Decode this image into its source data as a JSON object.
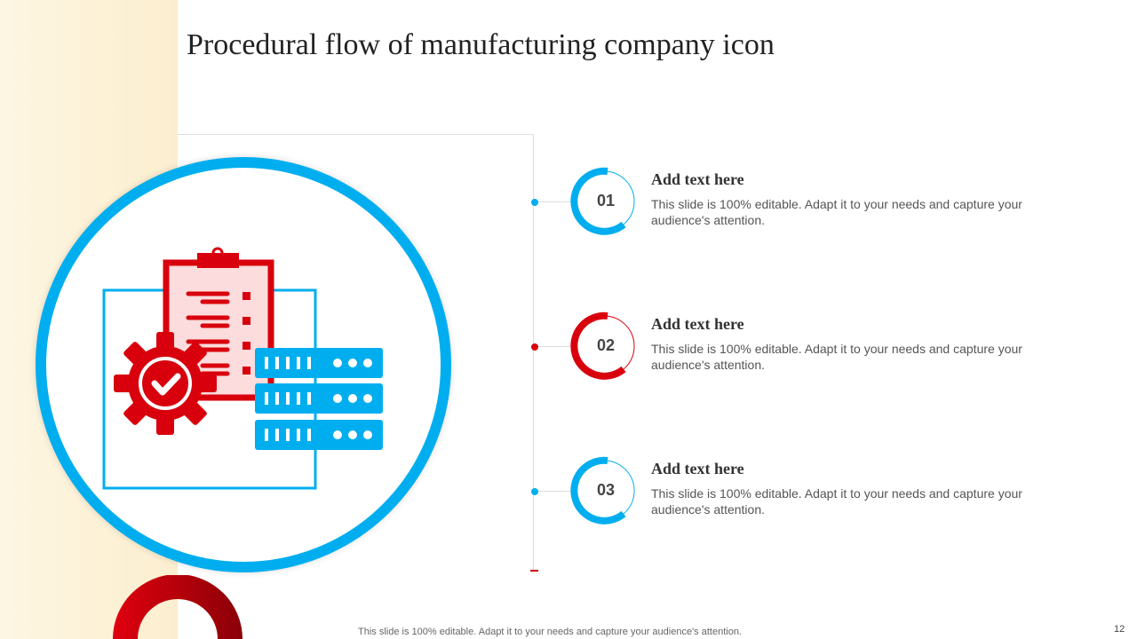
{
  "title": "Procedural flow of manufacturing company icon",
  "colors": {
    "blue": "#00aeef",
    "red": "#d9000d"
  },
  "steps": [
    {
      "number": "01",
      "heading": "Add text here",
      "text": "This slide is 100% editable. Adapt it to your needs and capture your audience's attention.",
      "color": "#00aeef"
    },
    {
      "number": "02",
      "heading": "Add text here",
      "text": "This slide is 100% editable. Adapt it to your needs and capture your audience's attention.",
      "color": "#d9000d"
    },
    {
      "number": "03",
      "heading": "Add text here",
      "text": "This slide is 100% editable. Adapt it to your needs and capture your audience's attention.",
      "color": "#00aeef"
    }
  ],
  "footer": "This slide is 100% editable. Adapt it to your needs and capture your audience's attention.",
  "page_number": "12"
}
